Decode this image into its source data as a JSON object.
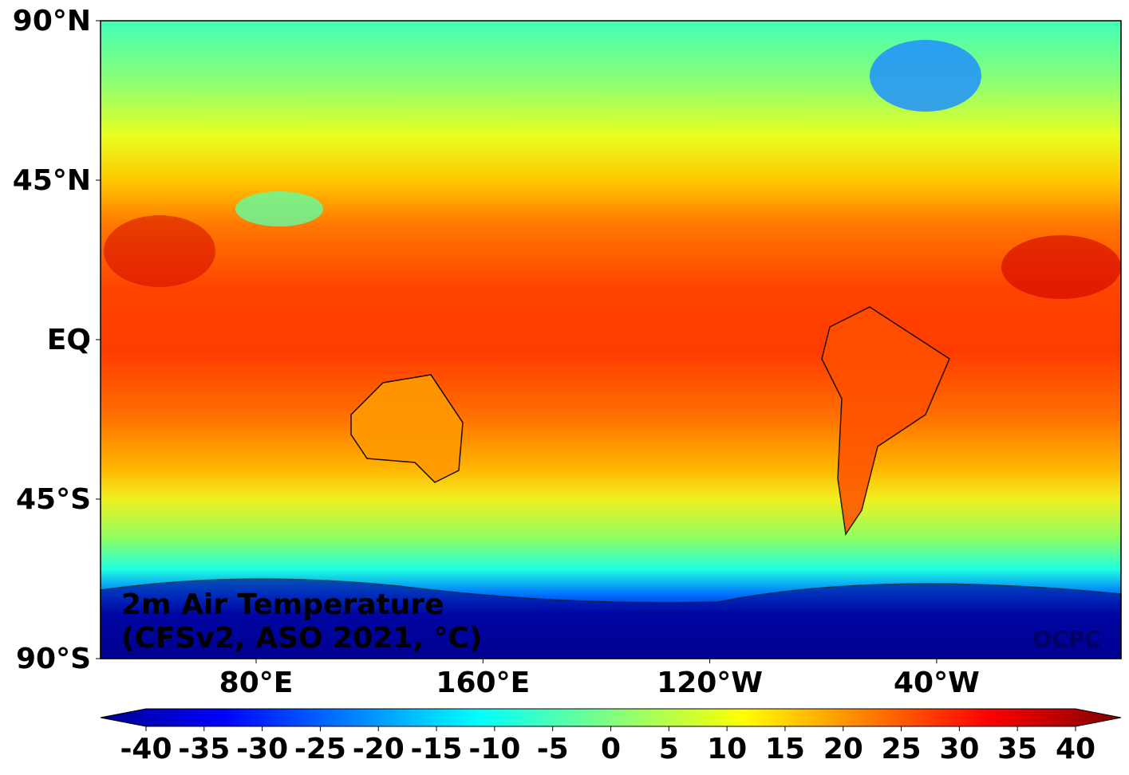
{
  "map": {
    "lat_labels": [
      "90°N",
      "45°N",
      "EQ",
      "45°S",
      "90°S"
    ],
    "lon_labels": [
      "80°E",
      "160°E",
      "120°W",
      "40°W"
    ],
    "title": [
      "2m Air Temperature",
      "(CFSv2, ASO 2021, °C)"
    ],
    "credit": "OCPC",
    "colorbar": {
      "range": [
        -40,
        40
      ],
      "ticks": [
        -40,
        -35,
        -30,
        -25,
        -20,
        -15,
        -10,
        -5,
        0,
        5,
        10,
        15,
        20,
        25,
        30,
        35,
        40
      ]
    }
  }
}
